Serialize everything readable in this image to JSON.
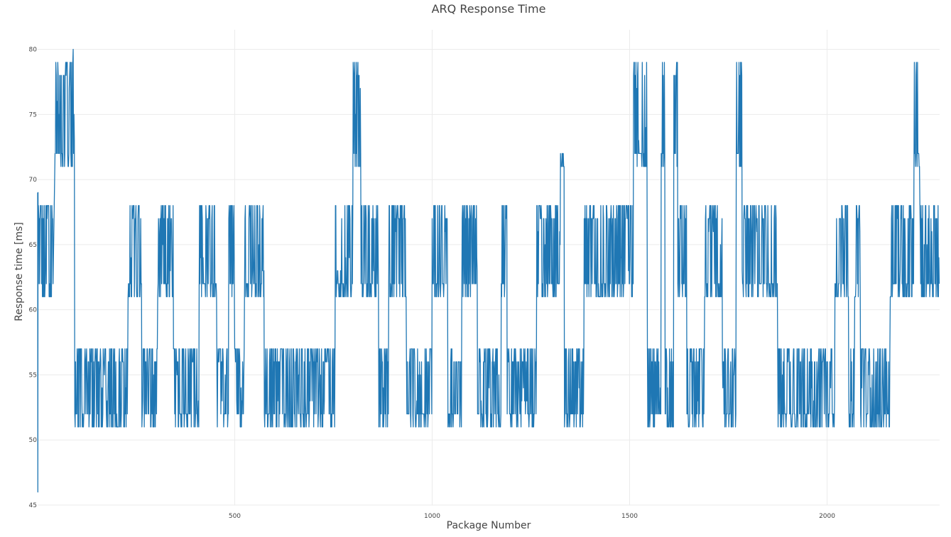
{
  "chart_data": {
    "type": "line",
    "title": "ARQ Response Time",
    "xlabel": "Package Number",
    "ylabel": "Response time [ms]",
    "xlim": [
      1,
      2285
    ],
    "ylim": [
      45,
      81.5
    ],
    "x_ticks": [
      500,
      1000,
      1500,
      2000
    ],
    "y_ticks": [
      45,
      50,
      55,
      60,
      65,
      70,
      75,
      80
    ],
    "grid": true,
    "legend": "none",
    "line_color": "#1f77b4",
    "series": [
      {
        "segments": [
          {
            "x0": 1,
            "x1": 3,
            "low": 46,
            "high": 69,
            "pattern": "spike"
          },
          {
            "x0": 3,
            "x1": 40,
            "low": 61,
            "high": 68,
            "pattern": "osc"
          },
          {
            "x0": 40,
            "x1": 45,
            "low": 62,
            "high": 72,
            "pattern": "ramp"
          },
          {
            "x0": 45,
            "x1": 90,
            "low": 71,
            "high": 79,
            "pattern": "osc"
          },
          {
            "x0": 90,
            "x1": 95,
            "low": 72,
            "high": 80,
            "pattern": "osc"
          },
          {
            "x0": 95,
            "x1": 230,
            "low": 51,
            "high": 57,
            "pattern": "osc"
          },
          {
            "x0": 230,
            "x1": 265,
            "low": 61,
            "high": 68,
            "pattern": "osc"
          },
          {
            "x0": 265,
            "x1": 305,
            "low": 51,
            "high": 57,
            "pattern": "osc"
          },
          {
            "x0": 305,
            "x1": 345,
            "low": 61,
            "high": 68,
            "pattern": "osc"
          },
          {
            "x0": 345,
            "x1": 410,
            "low": 51,
            "high": 57,
            "pattern": "osc"
          },
          {
            "x0": 410,
            "x1": 455,
            "low": 61,
            "high": 68,
            "pattern": "osc"
          },
          {
            "x0": 455,
            "x1": 485,
            "low": 51,
            "high": 57,
            "pattern": "osc"
          },
          {
            "x0": 485,
            "x1": 500,
            "low": 61,
            "high": 68,
            "pattern": "osc"
          },
          {
            "x0": 500,
            "x1": 525,
            "low": 51,
            "high": 57,
            "pattern": "osc"
          },
          {
            "x0": 525,
            "x1": 575,
            "low": 61,
            "high": 68,
            "pattern": "osc"
          },
          {
            "x0": 575,
            "x1": 755,
            "low": 51,
            "high": 57,
            "pattern": "osc"
          },
          {
            "x0": 755,
            "x1": 800,
            "low": 61,
            "high": 68,
            "pattern": "osc"
          },
          {
            "x0": 800,
            "x1": 820,
            "low": 71,
            "high": 79,
            "pattern": "osc"
          },
          {
            "x0": 820,
            "x1": 865,
            "low": 61,
            "high": 68,
            "pattern": "osc"
          },
          {
            "x0": 865,
            "x1": 890,
            "low": 51,
            "high": 57,
            "pattern": "osc"
          },
          {
            "x0": 890,
            "x1": 935,
            "low": 61,
            "high": 68,
            "pattern": "osc"
          },
          {
            "x0": 935,
            "x1": 1000,
            "low": 51,
            "high": 57,
            "pattern": "osc"
          },
          {
            "x0": 1000,
            "x1": 1040,
            "low": 61,
            "high": 68,
            "pattern": "osc"
          },
          {
            "x0": 1040,
            "x1": 1075,
            "low": 51,
            "high": 57,
            "pattern": "osc"
          },
          {
            "x0": 1075,
            "x1": 1115,
            "low": 61,
            "high": 68,
            "pattern": "osc"
          },
          {
            "x0": 1115,
            "x1": 1175,
            "low": 51,
            "high": 57,
            "pattern": "osc"
          },
          {
            "x0": 1175,
            "x1": 1190,
            "low": 61,
            "high": 68,
            "pattern": "osc"
          },
          {
            "x0": 1190,
            "x1": 1265,
            "low": 51,
            "high": 57,
            "pattern": "osc"
          },
          {
            "x0": 1265,
            "x1": 1325,
            "low": 61,
            "high": 68,
            "pattern": "osc"
          },
          {
            "x0": 1325,
            "x1": 1335,
            "low": 71,
            "high": 72,
            "pattern": "osc"
          },
          {
            "x0": 1335,
            "x1": 1385,
            "low": 51,
            "high": 57,
            "pattern": "osc"
          },
          {
            "x0": 1385,
            "x1": 1510,
            "low": 61,
            "high": 68,
            "pattern": "osc"
          },
          {
            "x0": 1510,
            "x1": 1545,
            "low": 71,
            "high": 79,
            "pattern": "osc"
          },
          {
            "x0": 1545,
            "x1": 1580,
            "low": 51,
            "high": 57,
            "pattern": "osc"
          },
          {
            "x0": 1580,
            "x1": 1590,
            "low": 71,
            "high": 79,
            "pattern": "osc"
          },
          {
            "x0": 1590,
            "x1": 1612,
            "low": 51,
            "high": 57,
            "pattern": "osc"
          },
          {
            "x0": 1612,
            "x1": 1622,
            "low": 71,
            "high": 79,
            "pattern": "osc"
          },
          {
            "x0": 1622,
            "x1": 1645,
            "low": 61,
            "high": 68,
            "pattern": "osc"
          },
          {
            "x0": 1645,
            "x1": 1690,
            "low": 51,
            "high": 57,
            "pattern": "osc"
          },
          {
            "x0": 1690,
            "x1": 1735,
            "low": 61,
            "high": 68,
            "pattern": "osc"
          },
          {
            "x0": 1735,
            "x1": 1770,
            "low": 51,
            "high": 57,
            "pattern": "osc"
          },
          {
            "x0": 1770,
            "x1": 1785,
            "low": 71,
            "high": 79,
            "pattern": "osc"
          },
          {
            "x0": 1785,
            "x1": 1875,
            "low": 61,
            "high": 68,
            "pattern": "osc"
          },
          {
            "x0": 1875,
            "x1": 2020,
            "low": 51,
            "high": 57,
            "pattern": "osc"
          },
          {
            "x0": 2020,
            "x1": 2055,
            "low": 61,
            "high": 68,
            "pattern": "osc"
          },
          {
            "x0": 2055,
            "x1": 2070,
            "low": 51,
            "high": 57,
            "pattern": "osc"
          },
          {
            "x0": 2070,
            "x1": 2085,
            "low": 61,
            "high": 68,
            "pattern": "osc"
          },
          {
            "x0": 2085,
            "x1": 2160,
            "low": 51,
            "high": 57,
            "pattern": "osc"
          },
          {
            "x0": 2160,
            "x1": 2220,
            "low": 61,
            "high": 68,
            "pattern": "osc"
          },
          {
            "x0": 2220,
            "x1": 2235,
            "low": 71,
            "high": 79,
            "pattern": "osc"
          },
          {
            "x0": 2235,
            "x1": 2285,
            "low": 61,
            "high": 68,
            "pattern": "osc"
          }
        ]
      }
    ]
  }
}
